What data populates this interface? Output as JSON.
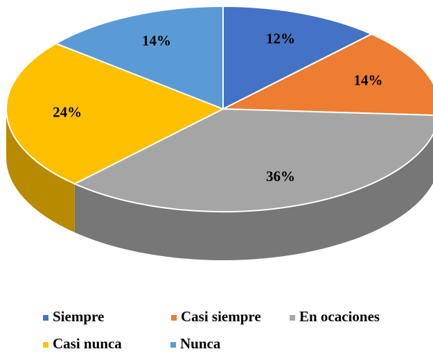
{
  "chart_data": {
    "type": "pie",
    "categories": [
      "Siempre",
      "Casi siempre",
      "En ocaciones",
      "Casi nunca",
      "Nunca"
    ],
    "values": [
      12,
      14,
      36,
      24,
      14
    ],
    "value_labels": [
      "12%",
      "14%",
      "36%",
      "24%",
      "14%"
    ],
    "colors": [
      "#4472c4",
      "#ed7d31",
      "#a5a5a5",
      "#ffc000",
      "#5b9bd5"
    ]
  }
}
